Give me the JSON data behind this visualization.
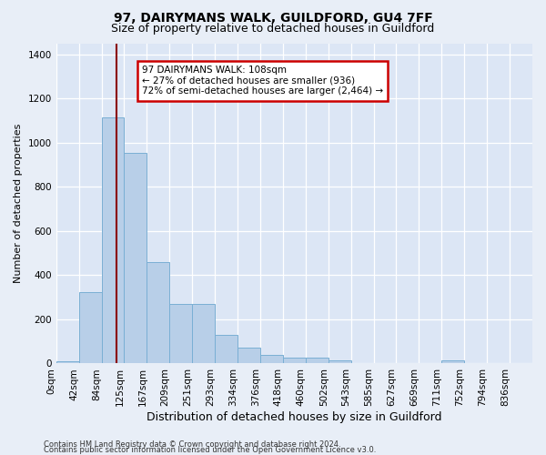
{
  "title": "97, DAIRYMANS WALK, GUILDFORD, GU4 7FF",
  "subtitle": "Size of property relative to detached houses in Guildford",
  "xlabel": "Distribution of detached houses by size in Guildford",
  "ylabel": "Number of detached properties",
  "footer1": "Contains HM Land Registry data © Crown copyright and database right 2024.",
  "footer2": "Contains public sector information licensed under the Open Government Licence v3.0.",
  "categories": [
    "0sqm",
    "42sqm",
    "84sqm",
    "125sqm",
    "167sqm",
    "209sqm",
    "251sqm",
    "293sqm",
    "334sqm",
    "376sqm",
    "418sqm",
    "460sqm",
    "502sqm",
    "543sqm",
    "585sqm",
    "627sqm",
    "669sqm",
    "711sqm",
    "752sqm",
    "794sqm",
    "836sqm"
  ],
  "values": [
    10,
    325,
    1115,
    955,
    460,
    270,
    270,
    130,
    70,
    38,
    25,
    25,
    15,
    0,
    0,
    0,
    0,
    15,
    0,
    0,
    0
  ],
  "bar_color": "#b8cfe8",
  "bar_edge_color": "#7aafd4",
  "vline_x": 2.65,
  "vline_color": "#8b0000",
  "annotation_text": "97 DAIRYMANS WALK: 108sqm\n← 27% of detached houses are smaller (936)\n72% of semi-detached houses are larger (2,464) →",
  "annotation_box_color": "#ffffff",
  "annotation_box_edge": "#cc0000",
  "ylim": [
    0,
    1450
  ],
  "yticks": [
    0,
    200,
    400,
    600,
    800,
    1000,
    1200,
    1400
  ],
  "bg_color": "#e8eef7",
  "plot_bg_color": "#dce6f5",
  "title_fontsize": 10,
  "subtitle_fontsize": 9,
  "xlabel_fontsize": 9,
  "ylabel_fontsize": 8,
  "tick_fontsize": 7.5,
  "annotation_fontsize": 7.5,
  "footer_fontsize": 6
}
